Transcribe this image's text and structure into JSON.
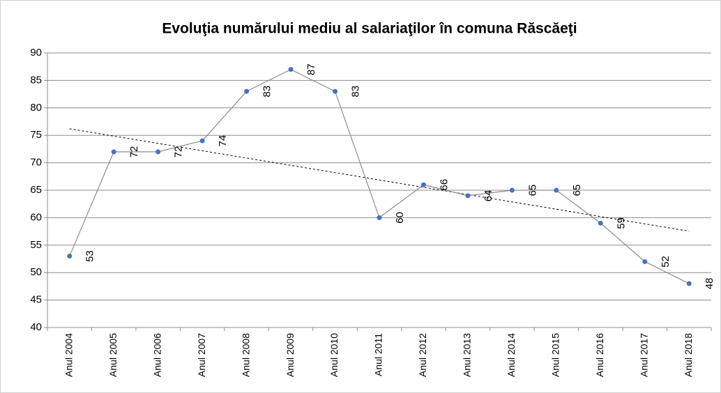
{
  "chart_data": {
    "type": "line",
    "title": "Evoluţia numărului mediu al salariaţilor în comuna Răscăeţi",
    "categories": [
      "Anul 2004",
      "Anul 2005",
      "Anul 2006",
      "Anul 2007",
      "Anul 2008",
      "Anul 2009",
      "Anul 2010",
      "Anul 2011",
      "Anul 2012",
      "Anul 2013",
      "Anul 2014",
      "Anul 2015",
      "Anul 2016",
      "Anul 2017",
      "Anul 2018"
    ],
    "values": [
      53,
      72,
      72,
      74,
      83,
      87,
      83,
      60,
      66,
      64,
      65,
      65,
      59,
      52,
      48
    ],
    "color": "#4472c4",
    "line_color": "#8c8c8c",
    "ylim": [
      40,
      90
    ],
    "yticks": [
      40,
      45,
      50,
      55,
      60,
      65,
      70,
      75,
      80,
      85,
      90
    ],
    "grid": true,
    "trendline": true
  }
}
